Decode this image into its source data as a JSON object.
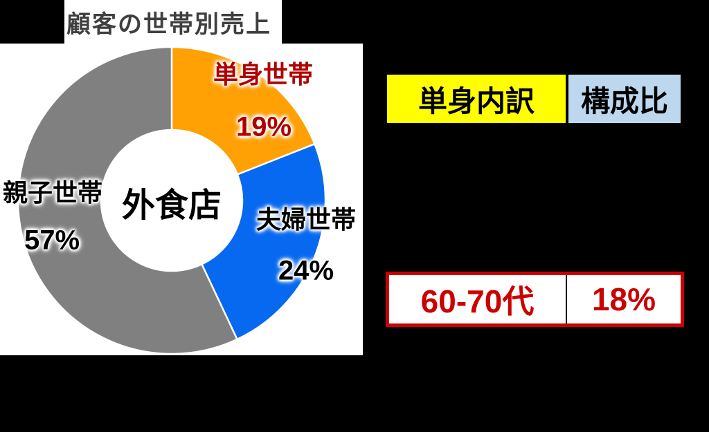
{
  "page": {
    "background": "#000000"
  },
  "title": {
    "text": "顧客の世帯別売上",
    "color": "#3f3f3f"
  },
  "chart_data": {
    "type": "pie",
    "subtype": "donut",
    "title": "顧客の世帯別売上",
    "center_label": "外食店",
    "units": "%",
    "direction": "clockwise",
    "start_angle_deg": 0,
    "inner_radius_ratio": 0.46,
    "segments": [
      {
        "label": "単身世帯",
        "value": 19,
        "pct_label": "19%",
        "color": "#ffa005",
        "label_color": "#b00000"
      },
      {
        "label": "夫婦世帯",
        "value": 24,
        "pct_label": "24%",
        "color": "#0768f0",
        "label_color": "#000000"
      },
      {
        "label": "親子世帯",
        "value": 57,
        "pct_label": "57%",
        "color": "#808080",
        "label_color": "#000000"
      }
    ]
  },
  "breakdown_table": {
    "headers": [
      {
        "text": "単身内訳",
        "bg": "#ffff00"
      },
      {
        "text": "構成比",
        "bg": "#bdd7ee"
      }
    ],
    "highlight_row": {
      "category": "60-70代",
      "share": "18%",
      "text_color": "#cc0000",
      "border_color": "#cc0000"
    }
  }
}
